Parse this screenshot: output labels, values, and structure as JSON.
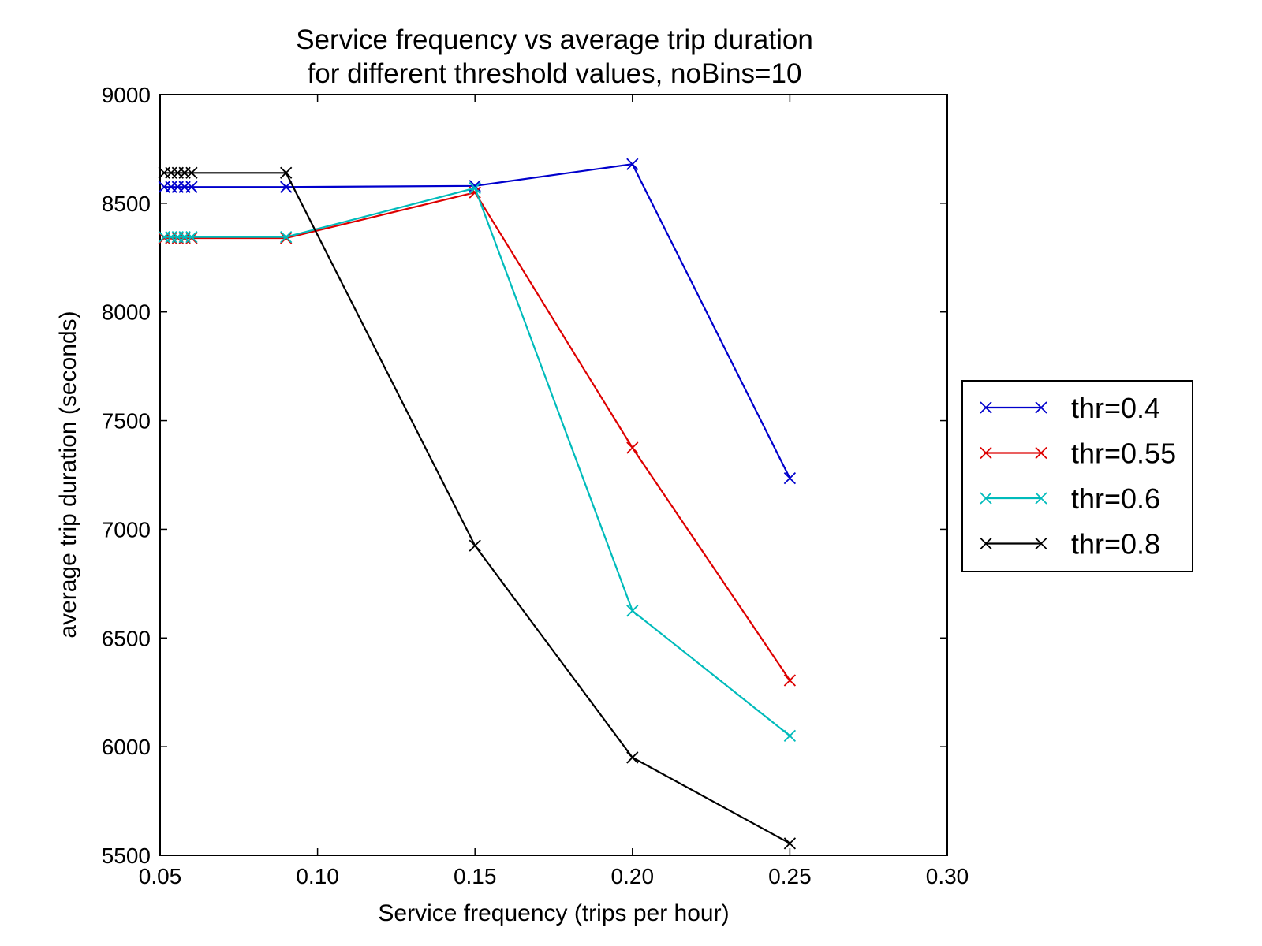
{
  "chart_data": {
    "type": "line",
    "title": [
      "Service frequency vs average trip duration",
      "for different threshold values, noBins=10"
    ],
    "xlabel": "Service frequency (trips per hour)",
    "ylabel": "average trip duration (seconds)",
    "xlim": [
      0.05,
      0.3
    ],
    "ylim": [
      5500,
      9000
    ],
    "xticks": [
      0.05,
      0.1,
      0.15,
      0.2,
      0.25,
      0.3
    ],
    "xtick_labels": [
      "0.05",
      "0.10",
      "0.15",
      "0.20",
      "0.25",
      "0.30"
    ],
    "yticks": [
      5500,
      6000,
      6500,
      7000,
      7500,
      8000,
      8500,
      9000
    ],
    "ytick_labels": [
      "5500",
      "6000",
      "6500",
      "7000",
      "7500",
      "8000",
      "8500",
      "9000"
    ],
    "grid": false,
    "legend_position": "outside-right",
    "marker": "x",
    "series": [
      {
        "name": "thr=0.4",
        "color": "#0000cc",
        "x": [
          0.0513,
          0.0535,
          0.0556,
          0.0578,
          0.06,
          0.09,
          0.15,
          0.2,
          0.25
        ],
        "y": [
          8575,
          8575,
          8575,
          8575,
          8575,
          8575,
          8580,
          8680,
          7235
        ]
      },
      {
        "name": "thr=0.55",
        "color": "#dd0000",
        "x": [
          0.0513,
          0.0535,
          0.0556,
          0.0578,
          0.06,
          0.09,
          0.15,
          0.2,
          0.25
        ],
        "y": [
          8340,
          8340,
          8340,
          8340,
          8340,
          8340,
          8550,
          7375,
          6305
        ]
      },
      {
        "name": "thr=0.6",
        "color": "#00bbbb",
        "x": [
          0.0513,
          0.0535,
          0.0556,
          0.0578,
          0.06,
          0.09,
          0.15,
          0.2,
          0.25
        ],
        "y": [
          8345,
          8345,
          8345,
          8345,
          8345,
          8345,
          8570,
          6625,
          6050
        ]
      },
      {
        "name": "thr=0.8",
        "color": "#000000",
        "x": [
          0.0513,
          0.0535,
          0.0556,
          0.0578,
          0.06,
          0.09,
          0.15,
          0.2,
          0.25
        ],
        "y": [
          8640,
          8640,
          8640,
          8640,
          8640,
          8640,
          6925,
          5950,
          5555
        ]
      }
    ]
  }
}
